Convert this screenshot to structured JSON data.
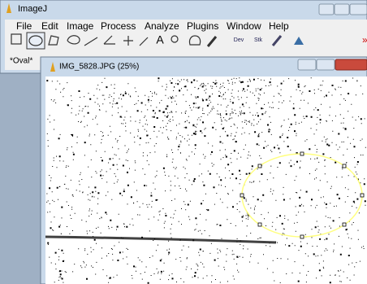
{
  "main_window": {
    "title": "ImageJ",
    "menu": [
      "File",
      "Edit",
      "Image",
      "Process",
      "Analyze",
      "Plugins",
      "Window",
      "Help"
    ],
    "toolbar": [
      "Dev",
      "Stk"
    ],
    "status": "*Oval*"
  },
  "image_window": {
    "title": "IMG_5828.JPG (25%)"
  }
}
